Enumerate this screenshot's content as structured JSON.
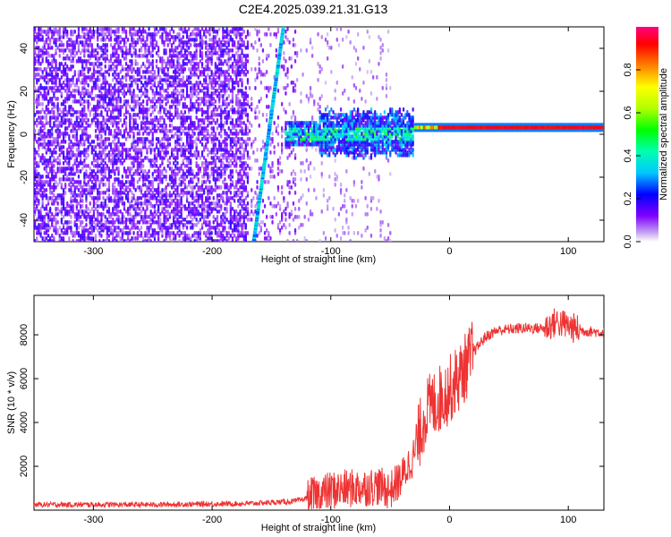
{
  "title": "C2E4.2025.039.21.31.G13",
  "chart_data": [
    {
      "type": "heatmap",
      "xlabel": "Height of straight line (km)",
      "ylabel": "Frequency (Hz)",
      "xlim": [
        -350,
        130
      ],
      "ylim": [
        -50,
        50
      ],
      "xticks": [
        -300,
        -200,
        -100,
        0,
        100
      ],
      "yticks": [
        -40,
        -20,
        0,
        20,
        40
      ],
      "colorbar": {
        "label": "Normalized spectral amplitude",
        "range": [
          0,
          1
        ],
        "ticks": [
          "0.0",
          "0.2",
          "0.4",
          "0.6",
          "0.8"
        ]
      },
      "features": {
        "steady_tone_frequency_hz": 2,
        "steady_tone_start_km": -30,
        "diagonal_line_km_at_minus50hz": -165,
        "diagonal_line_km_at_plus50hz": -140,
        "noise_region_km": [
          -350,
          -50
        ]
      }
    },
    {
      "type": "line",
      "xlabel": "Height of straight line (km)",
      "ylabel": "SNR (10 * v/v)",
      "xlim": [
        -350,
        130
      ],
      "ylim": [
        0,
        9800
      ],
      "xticks": [
        -300,
        -200,
        -100,
        0,
        100
      ],
      "yticks": [
        2000,
        4000,
        6000,
        8000
      ],
      "color": "#ee3333",
      "series_profile": {
        "x": [
          -350,
          -250,
          -170,
          -130,
          -110,
          -100,
          -80,
          -60,
          -50,
          -40,
          -30,
          -20,
          -10,
          0,
          10,
          20,
          30,
          40,
          60,
          80,
          90,
          100,
          110,
          130
        ],
        "y": [
          250,
          250,
          300,
          400,
          700,
          900,
          1000,
          1100,
          900,
          1500,
          2500,
          4500,
          5000,
          5500,
          6200,
          7200,
          7900,
          8200,
          8300,
          8300,
          8600,
          8400,
          8200,
          8100
        ]
      }
    }
  ]
}
